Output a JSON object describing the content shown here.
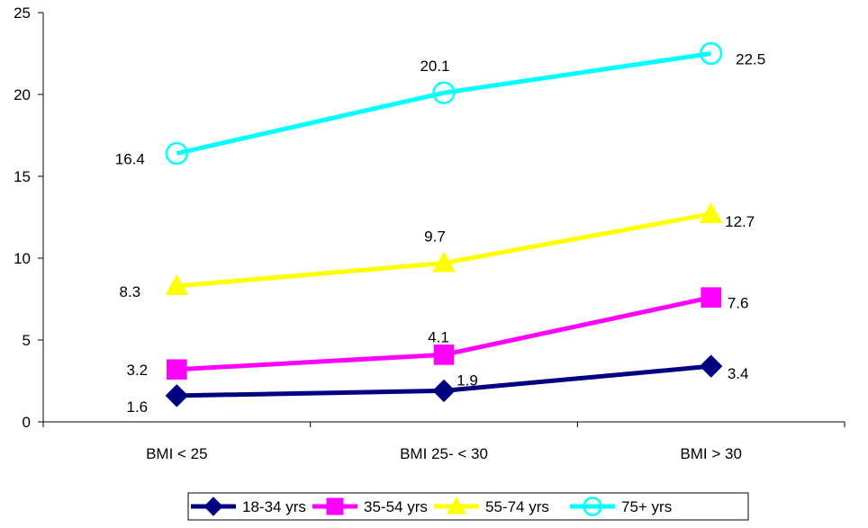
{
  "chart_data": {
    "type": "line",
    "categories": [
      "BMI < 25",
      "BMI 25- < 30",
      "BMI > 30"
    ],
    "ylim": [
      0,
      25
    ],
    "yticks": [
      "0",
      "5",
      "10",
      "15",
      "20",
      "25"
    ],
    "grid": false,
    "legend_position": "bottom",
    "series": [
      {
        "name": "18-34 yrs",
        "values": [
          1.6,
          1.9,
          3.4
        ],
        "labels": [
          "1.6",
          "1.9",
          "3.4"
        ],
        "color": "#000080",
        "marker": "diamond"
      },
      {
        "name": "35-54 yrs",
        "values": [
          3.2,
          4.1,
          7.6
        ],
        "labels": [
          "3.2",
          "4.1",
          "7.6"
        ],
        "color": "#FF00FF",
        "marker": "square"
      },
      {
        "name": "55-74 yrs",
        "values": [
          8.3,
          9.7,
          12.7
        ],
        "labels": [
          "8.3",
          "9.7",
          "12.7"
        ],
        "color": "#FFFF00",
        "marker": "triangle"
      },
      {
        "name": "75+ yrs",
        "values": [
          16.4,
          20.1,
          22.5
        ],
        "labels": [
          "16.4",
          "20.1",
          "22.5"
        ],
        "color": "#00FFFF",
        "marker": "circle"
      }
    ]
  }
}
